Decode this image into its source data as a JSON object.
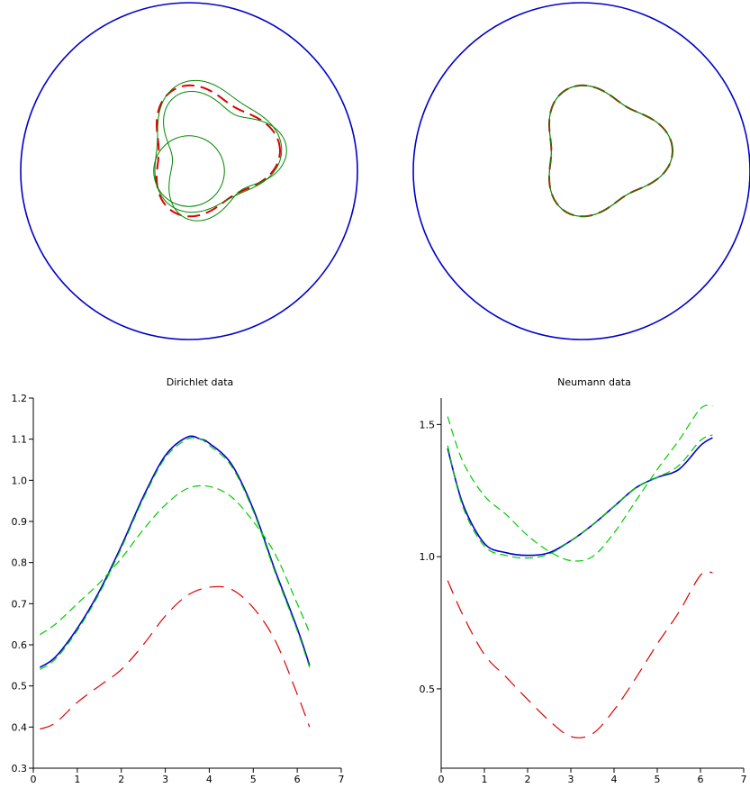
{
  "colors": {
    "domain_boundary": "#0000cc",
    "exact": "#dd0000",
    "reconstruction": "#008800",
    "data_exact": "#0000cc",
    "data_reconstruction": "#00cc00"
  },
  "chart_data": [
    {
      "type": "shape",
      "panel": "top-left",
      "shapes": [
        {
          "kind": "circle",
          "role": "outer-boundary",
          "color": "#0000cc",
          "center": [
            0,
            0
          ],
          "radius": 1.0
        },
        {
          "kind": "rounded-triangle",
          "role": "exact-obstacle",
          "color": "#dd0000",
          "style": "dashed"
        },
        {
          "kind": "circle",
          "role": "initial-guess",
          "color": "#008800",
          "center": [
            0,
            0
          ],
          "radius": 0.2
        },
        {
          "kind": "closed-curve",
          "role": "intermediate-iterates",
          "color": "#008800",
          "count": 2
        }
      ]
    },
    {
      "type": "shape",
      "panel": "top-right",
      "shapes": [
        {
          "kind": "circle",
          "role": "outer-boundary",
          "color": "#0000cc",
          "center": [
            0,
            0
          ],
          "radius": 1.0
        },
        {
          "kind": "rounded-triangle",
          "role": "exact-obstacle",
          "color": "#dd0000",
          "style": "dashed"
        },
        {
          "kind": "rounded-triangle",
          "role": "final-reconstruction",
          "color": "#008800"
        }
      ]
    },
    {
      "type": "line",
      "title": "Dirichlet data",
      "xlabel": "",
      "ylabel": "",
      "xlim": [
        0,
        7
      ],
      "ylim": [
        0.3,
        1.2
      ],
      "xticks": [
        "0",
        "1",
        "2",
        "3",
        "4",
        "5",
        "6",
        "7"
      ],
      "yticks": [
        "0.3",
        "0.4",
        "0.5",
        "0.6",
        "0.7",
        "0.8",
        "0.9",
        "1.0",
        "1.1",
        "1.2"
      ],
      "series": [
        {
          "color": "#0000cc",
          "style": "solid",
          "x": [
            0.15,
            0.5,
            1.0,
            1.5,
            2.0,
            2.5,
            3.0,
            3.5,
            3.8,
            4.0,
            4.5,
            5.0,
            5.5,
            6.0,
            6.28
          ],
          "y": [
            0.545,
            0.57,
            0.64,
            0.73,
            0.84,
            0.96,
            1.06,
            1.105,
            1.1,
            1.09,
            1.04,
            0.93,
            0.78,
            0.64,
            0.55
          ]
        },
        {
          "color": "#00cc00",
          "style": "dashed",
          "x": [
            0.15,
            0.5,
            1.0,
            1.5,
            2.0,
            2.5,
            3.0,
            3.5,
            3.8,
            4.0,
            4.5,
            5.0,
            5.5,
            6.0,
            6.28
          ],
          "y": [
            0.54,
            0.565,
            0.635,
            0.725,
            0.835,
            0.955,
            1.055,
            1.1,
            1.1,
            1.085,
            1.035,
            0.925,
            0.775,
            0.635,
            0.545
          ]
        },
        {
          "color": "#00cc00",
          "style": "dashed",
          "x": [
            0.15,
            0.5,
            1.0,
            1.5,
            2.0,
            2.5,
            3.0,
            3.5,
            4.0,
            4.5,
            5.0,
            5.5,
            6.0,
            6.28
          ],
          "y": [
            0.625,
            0.65,
            0.7,
            0.75,
            0.81,
            0.88,
            0.94,
            0.98,
            0.985,
            0.96,
            0.9,
            0.82,
            0.7,
            0.63
          ]
        },
        {
          "color": "#dd0000",
          "style": "dashed",
          "x": [
            0.15,
            0.5,
            1.0,
            1.5,
            2.0,
            2.5,
            3.0,
            3.5,
            4.0,
            4.5,
            5.0,
            5.5,
            6.0,
            6.28
          ],
          "y": [
            0.395,
            0.41,
            0.46,
            0.5,
            0.54,
            0.6,
            0.67,
            0.72,
            0.74,
            0.735,
            0.69,
            0.61,
            0.48,
            0.4
          ]
        }
      ]
    },
    {
      "type": "line",
      "title": "Neumann data",
      "xlabel": "",
      "ylabel": "",
      "xlim": [
        0,
        7
      ],
      "ylim": [
        0.2,
        1.6
      ],
      "xticks": [
        "0",
        "1",
        "2",
        "3",
        "4",
        "5",
        "6",
        "7"
      ],
      "yticks": [
        "0.5",
        "1.0",
        "1.5"
      ],
      "series": [
        {
          "color": "#0000cc",
          "style": "solid",
          "x": [
            0.15,
            0.5,
            1.0,
            1.5,
            2.0,
            2.5,
            3.0,
            3.5,
            4.0,
            4.5,
            5.0,
            5.5,
            6.0,
            6.28
          ],
          "y": [
            1.41,
            1.2,
            1.05,
            1.015,
            1.005,
            1.015,
            1.06,
            1.12,
            1.19,
            1.26,
            1.3,
            1.33,
            1.42,
            1.45
          ]
        },
        {
          "color": "#00cc00",
          "style": "dashed",
          "x": [
            0.15,
            0.5,
            1.0,
            1.5,
            2.0,
            2.5,
            3.0,
            3.5,
            4.0,
            4.5,
            5.0,
            5.5,
            6.0,
            6.28
          ],
          "y": [
            1.42,
            1.19,
            1.04,
            1.005,
            0.995,
            1.01,
            1.06,
            1.12,
            1.19,
            1.26,
            1.3,
            1.345,
            1.44,
            1.46
          ]
        },
        {
          "color": "#00cc00",
          "style": "dashed",
          "x": [
            0.15,
            0.5,
            1.0,
            1.5,
            2.0,
            2.5,
            3.0,
            3.5,
            4.0,
            4.5,
            5.0,
            5.5,
            6.0,
            6.28
          ],
          "y": [
            1.53,
            1.36,
            1.23,
            1.16,
            1.08,
            1.02,
            0.985,
            1.0,
            1.09,
            1.21,
            1.33,
            1.44,
            1.56,
            1.57
          ]
        },
        {
          "color": "#dd0000",
          "style": "dashed",
          "x": [
            0.15,
            0.5,
            1.0,
            1.5,
            2.0,
            2.5,
            3.0,
            3.5,
            4.0,
            4.5,
            5.0,
            5.5,
            6.0,
            6.28
          ],
          "y": [
            0.91,
            0.78,
            0.63,
            0.545,
            0.46,
            0.38,
            0.32,
            0.33,
            0.42,
            0.54,
            0.67,
            0.79,
            0.93,
            0.94
          ]
        }
      ]
    }
  ]
}
